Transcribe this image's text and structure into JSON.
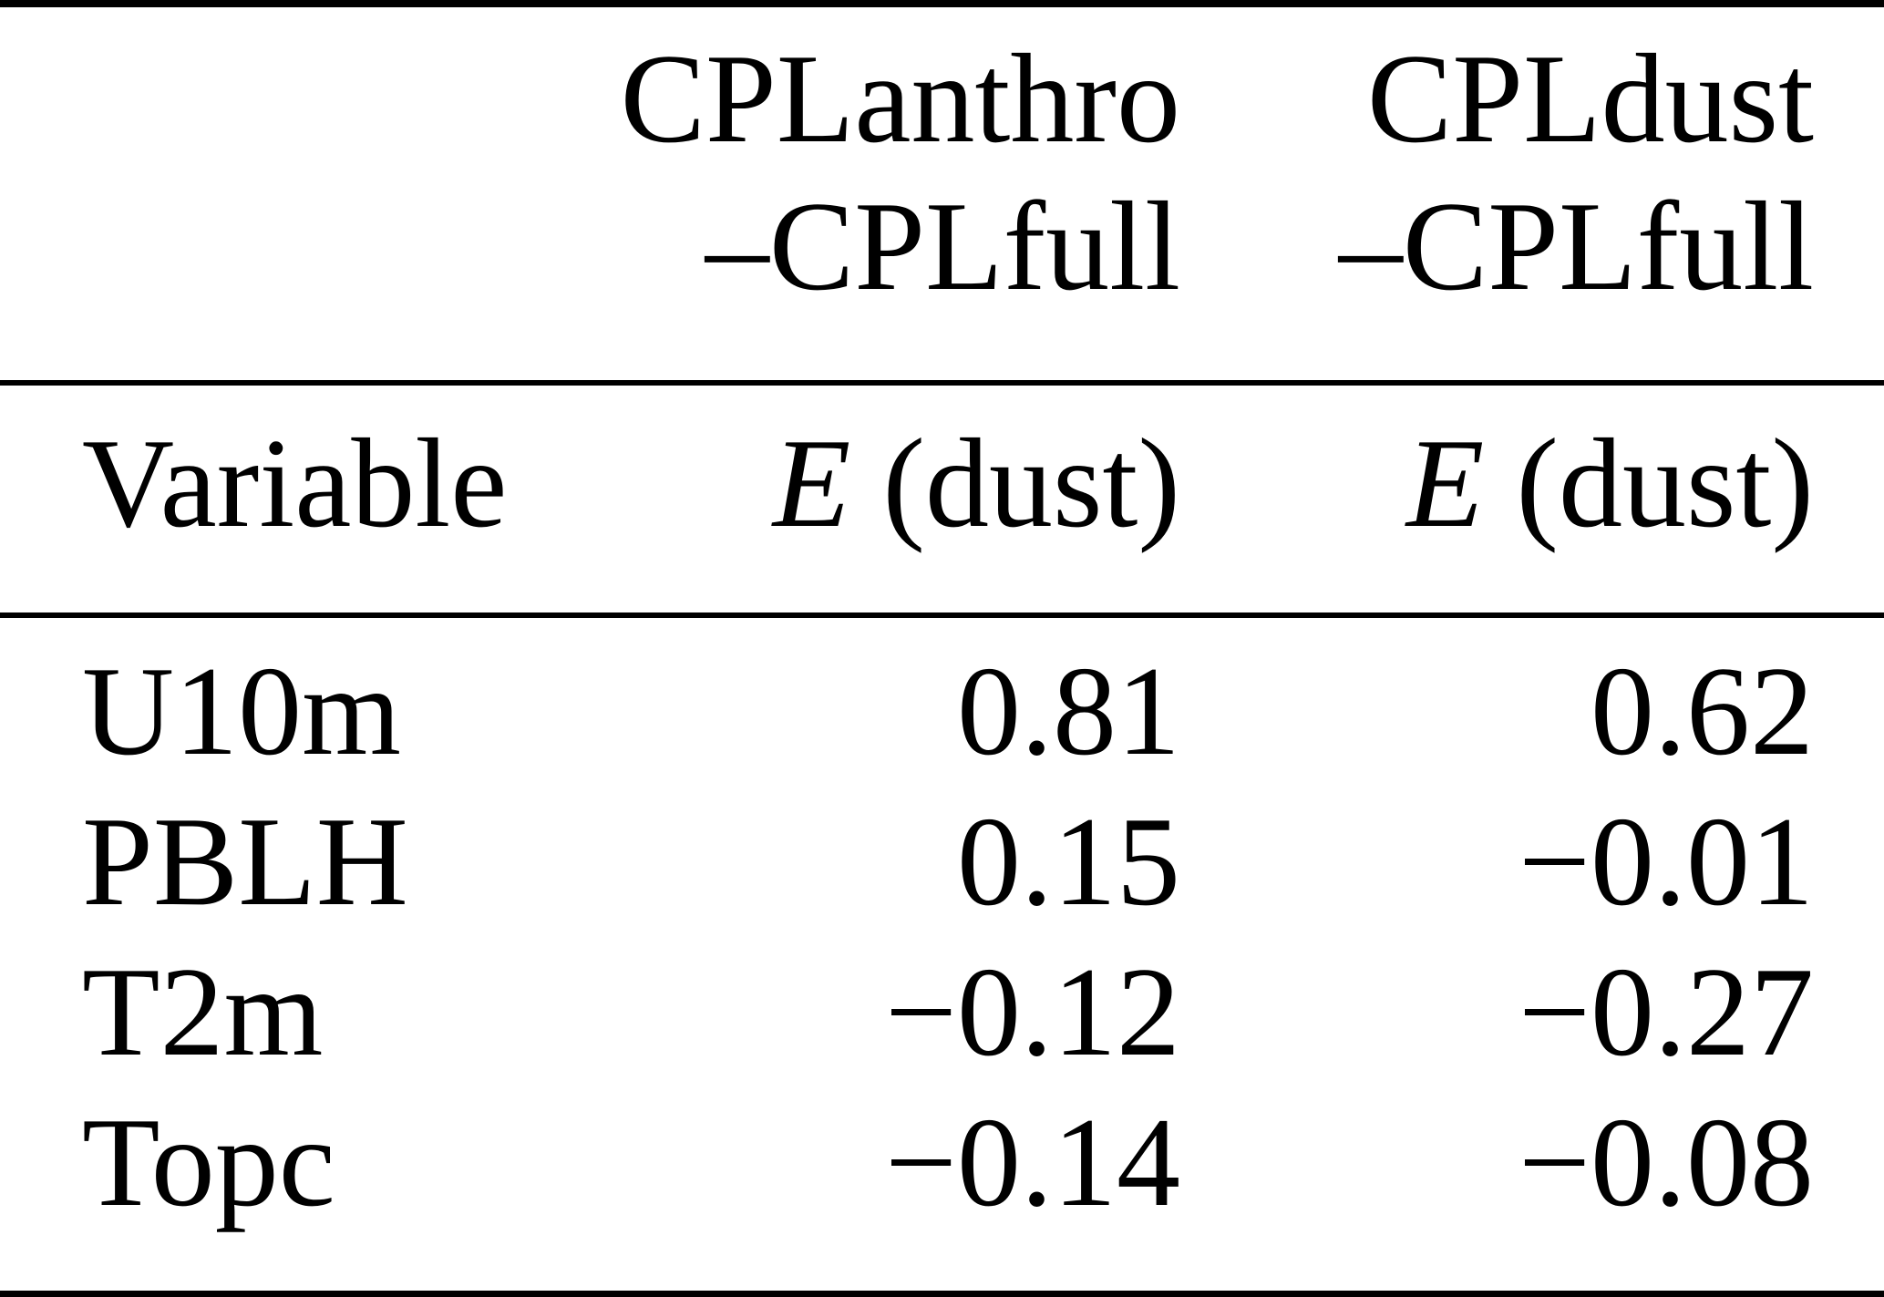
{
  "table": {
    "group_headers": [
      {
        "line1": "CPLanthro",
        "line2": "–CPLfull"
      },
      {
        "line1": "CPLdust",
        "line2": "–CPLfull"
      }
    ],
    "column_headers": {
      "variable_label": "Variable",
      "metrics": [
        {
          "symbol": "E",
          "rest": "(dust)"
        },
        {
          "symbol": "E",
          "rest": "(dust)"
        }
      ]
    },
    "rows": [
      {
        "variable": "U10m",
        "anthro_minus_full": "0.81",
        "dust_minus_full": "0.62"
      },
      {
        "variable": "PBLH",
        "anthro_minus_full": "0.15",
        "dust_minus_full": "−0.01"
      },
      {
        "variable": "T2m",
        "anthro_minus_full": "−0.12",
        "dust_minus_full": "−0.27"
      },
      {
        "variable": "Topc",
        "anthro_minus_full": "−0.14",
        "dust_minus_full": "−0.08"
      }
    ]
  }
}
